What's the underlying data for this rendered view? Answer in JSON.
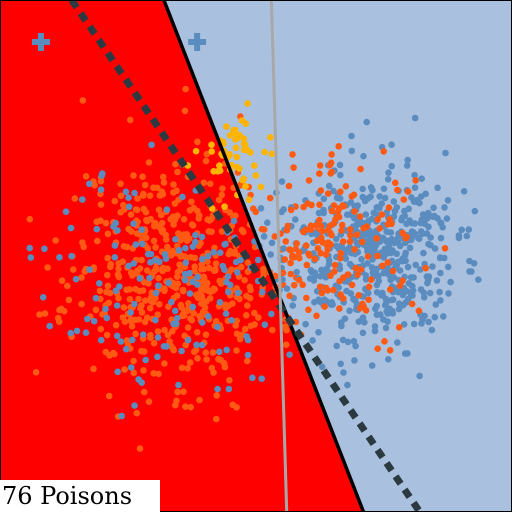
{
  "caption": "76 Poisons",
  "colors": {
    "background_region": "#a9c0de",
    "red_region": "#ff0000",
    "blue_points": "#5b8cbf",
    "orange_points": "#ff5a14",
    "gold_points": "#ffb400",
    "true_boundary": "#000000",
    "poisoned_boundary": "#2b3a40",
    "gray_line": "#a8a8a8",
    "plus_marker": "#5b8cbf"
  },
  "chart_data": {
    "type": "scatter",
    "title": "",
    "xlabel": "",
    "ylabel": "",
    "xlim": [
      0,
      1
    ],
    "ylim": [
      0,
      1
    ],
    "grid": false,
    "legend": "none",
    "regions": [
      {
        "name": "red-region",
        "polygon": [
          [
            0,
            1
          ],
          [
            0.32,
            1
          ],
          [
            0.71,
            0
          ],
          [
            0,
            0
          ]
        ]
      },
      {
        "name": "blue-region",
        "polygon": [
          [
            0.32,
            1
          ],
          [
            1,
            1
          ],
          [
            1,
            0
          ],
          [
            0.71,
            0
          ]
        ]
      }
    ],
    "lines": [
      {
        "name": "decision-boundary",
        "style": "solid",
        "from": [
          0.32,
          1.0
        ],
        "to": [
          0.71,
          0.0
        ]
      },
      {
        "name": "poisoned-boundary",
        "style": "dashed",
        "from": [
          0.14,
          1.0
        ],
        "to": [
          0.82,
          0.0
        ]
      },
      {
        "name": "gray-line",
        "style": "solid",
        "from": [
          0.53,
          1.0
        ],
        "to": [
          0.56,
          0.0
        ]
      }
    ],
    "markers": [
      {
        "name": "plus-marker-1",
        "shape": "plus",
        "x": 0.08,
        "y": 0.918
      },
      {
        "name": "plus-marker-2",
        "shape": "plus",
        "x": 0.385,
        "y": 0.918
      }
    ],
    "series": [
      {
        "color_key": "orange_points",
        "cx": 0.34,
        "cy": 0.47,
        "sx": 0.1,
        "sy": 0.115,
        "count": 520,
        "seed": 11
      },
      {
        "color_key": "blue_points",
        "cx": 0.72,
        "cy": 0.5,
        "sx": 0.085,
        "sy": 0.085,
        "count": 520,
        "seed": 23
      },
      {
        "color_key": "blue_points",
        "cx": 0.32,
        "cy": 0.45,
        "sx": 0.11,
        "sy": 0.11,
        "count": 150,
        "seed": 37
      },
      {
        "color_key": "orange_points",
        "cx": 0.66,
        "cy": 0.52,
        "sx": 0.08,
        "sy": 0.08,
        "count": 170,
        "seed": 41
      },
      {
        "color_key": "gold_points",
        "cx": 0.46,
        "cy": 0.7,
        "sx": 0.035,
        "sy": 0.045,
        "count": 55,
        "seed": 53
      }
    ]
  }
}
